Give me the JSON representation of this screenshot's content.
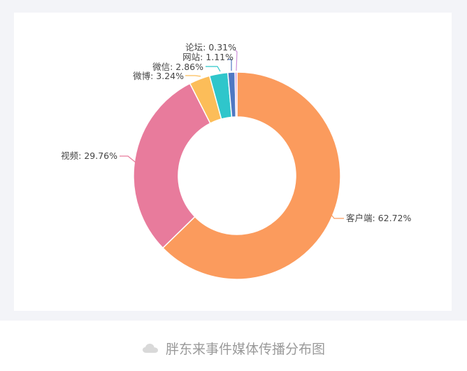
{
  "chart_data": {
    "type": "pie",
    "variant": "donut",
    "slices": [
      {
        "name": "客户端",
        "value": 62.72,
        "label": "客户端: 62.72%",
        "color": "#fb9b5d"
      },
      {
        "name": "视频",
        "value": 29.76,
        "label": "视频: 29.76%",
        "color": "#e87b9c"
      },
      {
        "name": "微博",
        "value": 3.24,
        "label": "微博: 3.24%",
        "color": "#fcbd59"
      },
      {
        "name": "微信",
        "value": 2.86,
        "label": "微信: 2.86%",
        "color": "#2fc6cb"
      },
      {
        "name": "网站",
        "value": 1.11,
        "label": "网站: 1.11%",
        "color": "#4f78c3"
      },
      {
        "name": "论坛",
        "value": 0.31,
        "label": "论坛: 0.31%",
        "color": "#cc8ed9"
      }
    ],
    "legend": false
  },
  "caption": {
    "text": "胖东来事件媒体传播分布图",
    "icon": "cloud-icon"
  }
}
